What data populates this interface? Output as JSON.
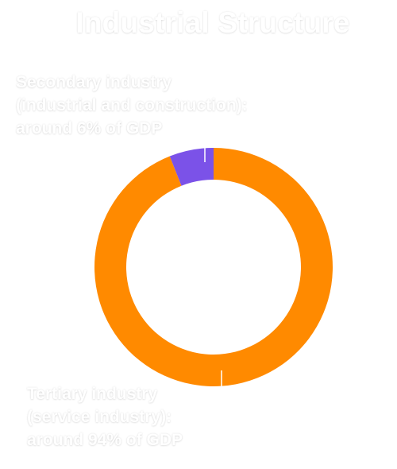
{
  "chart_data": {
    "type": "pie",
    "title": "Industrial Structure",
    "slices": [
      {
        "label": "Secondary industry\n(industrial and construction):\naround 6% of GDP",
        "value": 6,
        "color": "#7b52e8"
      },
      {
        "label": "Tertiary industry\n(service industry):\naround 94% of GDP",
        "value": 94,
        "color": "#ff8a00"
      }
    ],
    "donut": true,
    "legend": "none"
  }
}
